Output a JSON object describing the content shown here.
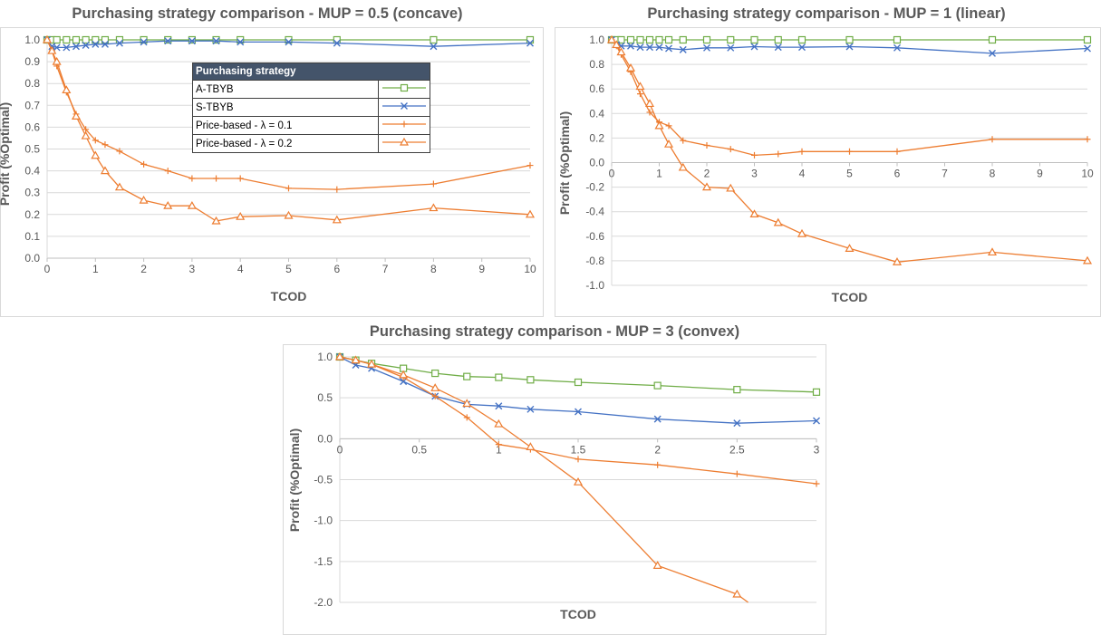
{
  "legend": {
    "title": "Purchasing strategy",
    "entries": [
      {
        "label": "A-TBYB",
        "color": "#70ad47",
        "marker": "square"
      },
      {
        "label": "S-TBYB",
        "color": "#4472c4",
        "marker": "x"
      },
      {
        "label": "Price-based - λ = 0.1",
        "color": "#ed7d31",
        "marker": "plus"
      },
      {
        "label": "Price-based - λ = 0.2",
        "color": "#ed7d31",
        "marker": "triangle"
      }
    ]
  },
  "chart_data": [
    {
      "type": "line",
      "title": "Purchasing strategy comparison - MUP = 0.5 (concave)",
      "xlabel": "TCOD",
      "ylabel": "Profit (%Optimal)",
      "xlim": [
        0,
        10
      ],
      "ylim": [
        0,
        1
      ],
      "xticks": [
        0,
        1,
        2,
        3,
        4,
        5,
        6,
        7,
        8,
        9,
        10
      ],
      "yticks": [
        0,
        0.1,
        0.2,
        0.3,
        0.4,
        0.5,
        0.6,
        0.7,
        0.8,
        0.9,
        1.0
      ],
      "grid": "horizontal",
      "legend_position": "inside-top-center",
      "series": [
        {
          "name": "A-TBYB",
          "x": [
            0,
            0.1,
            0.2,
            0.4,
            0.6,
            0.8,
            1,
            1.2,
            1.5,
            2,
            2.5,
            3,
            3.5,
            4,
            5,
            6,
            8,
            10
          ],
          "y": [
            1,
            1,
            1,
            1,
            1,
            1,
            1,
            1,
            1,
            1,
            1,
            1,
            1,
            1,
            1,
            1,
            1,
            1
          ]
        },
        {
          "name": "S-TBYB",
          "x": [
            0,
            0.1,
            0.2,
            0.4,
            0.6,
            0.8,
            1,
            1.2,
            1.5,
            2,
            2.5,
            3,
            3.5,
            4,
            5,
            6,
            8,
            10
          ],
          "y": [
            1,
            0.97,
            0.965,
            0.965,
            0.97,
            0.975,
            0.98,
            0.98,
            0.985,
            0.99,
            0.995,
            0.995,
            0.995,
            0.99,
            0.99,
            0.985,
            0.97,
            0.985
          ]
        },
        {
          "name": "Price-based - λ = 0.1",
          "x": [
            0,
            0.1,
            0.2,
            0.4,
            0.6,
            0.8,
            1,
            1.2,
            1.5,
            2,
            2.5,
            3,
            3.5,
            4,
            5,
            6,
            8,
            10
          ],
          "y": [
            1,
            0.95,
            0.88,
            0.76,
            0.66,
            0.59,
            0.54,
            0.52,
            0.49,
            0.43,
            0.4,
            0.365,
            0.365,
            0.365,
            0.32,
            0.315,
            0.34,
            0.425
          ]
        },
        {
          "name": "Price-based - λ = 0.2",
          "x": [
            0,
            0.1,
            0.2,
            0.4,
            0.6,
            0.8,
            1,
            1.2,
            1.5,
            2,
            2.5,
            3,
            3.5,
            4,
            5,
            6,
            8,
            10
          ],
          "y": [
            1,
            0.95,
            0.9,
            0.77,
            0.65,
            0.56,
            0.47,
            0.4,
            0.325,
            0.265,
            0.24,
            0.24,
            0.17,
            0.19,
            0.195,
            0.175,
            0.23,
            0.2
          ]
        }
      ]
    },
    {
      "type": "line",
      "title": "Purchasing strategy comparison - MUP = 1 (linear)",
      "xlabel": "TCOD",
      "ylabel": "Profit (%Optimal)",
      "xlim": [
        0,
        10
      ],
      "ylim": [
        -1,
        1
      ],
      "xticks": [
        0,
        1,
        2,
        3,
        4,
        5,
        6,
        7,
        8,
        9,
        10
      ],
      "yticks": [
        -1.0,
        -0.8,
        -0.6,
        -0.4,
        -0.2,
        0.0,
        0.2,
        0.4,
        0.6,
        0.8,
        1.0
      ],
      "grid": "horizontal",
      "series": [
        {
          "name": "A-TBYB",
          "x": [
            0,
            0.1,
            0.2,
            0.4,
            0.6,
            0.8,
            1,
            1.2,
            1.5,
            2,
            2.5,
            3,
            3.5,
            4,
            5,
            6,
            8,
            10
          ],
          "y": [
            1,
            1,
            1,
            1,
            1,
            1,
            1,
            1,
            1,
            1,
            1,
            1,
            1,
            1,
            1,
            1,
            1,
            1
          ]
        },
        {
          "name": "S-TBYB",
          "x": [
            0,
            0.1,
            0.2,
            0.4,
            0.6,
            0.8,
            1,
            1.2,
            1.5,
            2,
            2.5,
            3,
            3.5,
            4,
            5,
            6,
            8,
            10
          ],
          "y": [
            1,
            0.96,
            0.95,
            0.95,
            0.94,
            0.94,
            0.94,
            0.93,
            0.92,
            0.935,
            0.935,
            0.945,
            0.94,
            0.94,
            0.945,
            0.935,
            0.89,
            0.93
          ]
        },
        {
          "name": "Price-based - λ = 0.1",
          "x": [
            0,
            0.1,
            0.2,
            0.4,
            0.6,
            0.8,
            1,
            1.2,
            1.5,
            2,
            2.5,
            3,
            3.5,
            4,
            5,
            6,
            8,
            10
          ],
          "y": [
            1,
            0.95,
            0.88,
            0.74,
            0.56,
            0.41,
            0.33,
            0.3,
            0.18,
            0.14,
            0.11,
            0.06,
            0.07,
            0.09,
            0.09,
            0.09,
            0.19,
            0.19
          ]
        },
        {
          "name": "Price-based - λ = 0.2",
          "x": [
            0,
            0.1,
            0.2,
            0.4,
            0.6,
            0.8,
            1,
            1.2,
            1.5,
            2,
            2.5,
            3,
            3.5,
            4,
            5,
            6,
            8,
            10
          ],
          "y": [
            1,
            0.96,
            0.9,
            0.77,
            0.62,
            0.48,
            0.3,
            0.15,
            -0.04,
            -0.2,
            -0.21,
            -0.42,
            -0.49,
            -0.58,
            -0.7,
            -0.81,
            -0.73,
            -0.8
          ]
        }
      ]
    },
    {
      "type": "line",
      "title": "Purchasing strategy comparison - MUP = 3 (convex)",
      "xlabel": "TCOD",
      "ylabel": "Profit (%Optimal)",
      "xlim": [
        0,
        3
      ],
      "ylim": [
        -2,
        1
      ],
      "xticks": [
        0,
        0.5,
        1,
        1.5,
        2,
        2.5,
        3
      ],
      "xtick_labels": [
        "0",
        "0.5",
        "1",
        "1.5",
        "2",
        "2.5",
        "3"
      ],
      "yticks": [
        -2.0,
        -1.5,
        -1.0,
        -0.5,
        0.0,
        0.5,
        1.0
      ],
      "grid": "horizontal",
      "series": [
        {
          "name": "A-TBYB",
          "x": [
            0,
            0.1,
            0.2,
            0.4,
            0.6,
            0.8,
            1,
            1.2,
            1.5,
            2,
            2.5,
            3
          ],
          "y": [
            1,
            0.96,
            0.92,
            0.86,
            0.8,
            0.76,
            0.75,
            0.72,
            0.69,
            0.65,
            0.6,
            0.57
          ]
        },
        {
          "name": "S-TBYB",
          "x": [
            0,
            0.1,
            0.2,
            0.4,
            0.6,
            0.8,
            1,
            1.2,
            1.5,
            2,
            2.5,
            3
          ],
          "y": [
            1,
            0.9,
            0.86,
            0.7,
            0.52,
            0.42,
            0.4,
            0.36,
            0.33,
            0.24,
            0.19,
            0.22
          ]
        },
        {
          "name": "Price-based - λ = 0.1",
          "x": [
            0,
            0.1,
            0.2,
            0.4,
            0.6,
            0.8,
            1,
            1.2,
            1.5,
            2,
            2.5,
            3
          ],
          "y": [
            1,
            0.96,
            0.91,
            0.75,
            0.52,
            0.26,
            -0.07,
            -0.13,
            -0.25,
            -0.32,
            -0.43,
            -0.55
          ]
        },
        {
          "name": "Price-based - λ = 0.2",
          "x": [
            0,
            0.1,
            0.2,
            0.4,
            0.6,
            0.8,
            1,
            1.2,
            1.5,
            2,
            2.5,
            2.57
          ],
          "y": [
            1,
            0.96,
            0.91,
            0.78,
            0.62,
            0.43,
            0.18,
            -0.1,
            -0.53,
            -1.55,
            -1.9,
            -2.0
          ],
          "marker_count": 11
        }
      ]
    }
  ]
}
